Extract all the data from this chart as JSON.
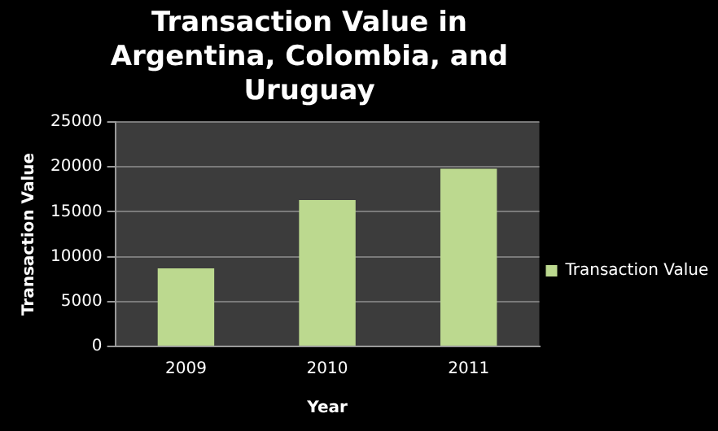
{
  "chart_data": {
    "type": "bar",
    "title": "Transaction Value in Argentina, Colombia, and Uruguay",
    "xlabel": "Year",
    "ylabel": "Transaction Value",
    "categories": [
      "2009",
      "2010",
      "2011"
    ],
    "series": [
      {
        "name": "Transaction Value",
        "color": "#bcd98f",
        "values": [
          8700,
          16300,
          19800
        ]
      }
    ],
    "ylim": [
      0,
      25000
    ],
    "yticks": [
      0,
      5000,
      10000,
      15000,
      20000,
      25000
    ],
    "grid": "y",
    "legend": "right"
  }
}
